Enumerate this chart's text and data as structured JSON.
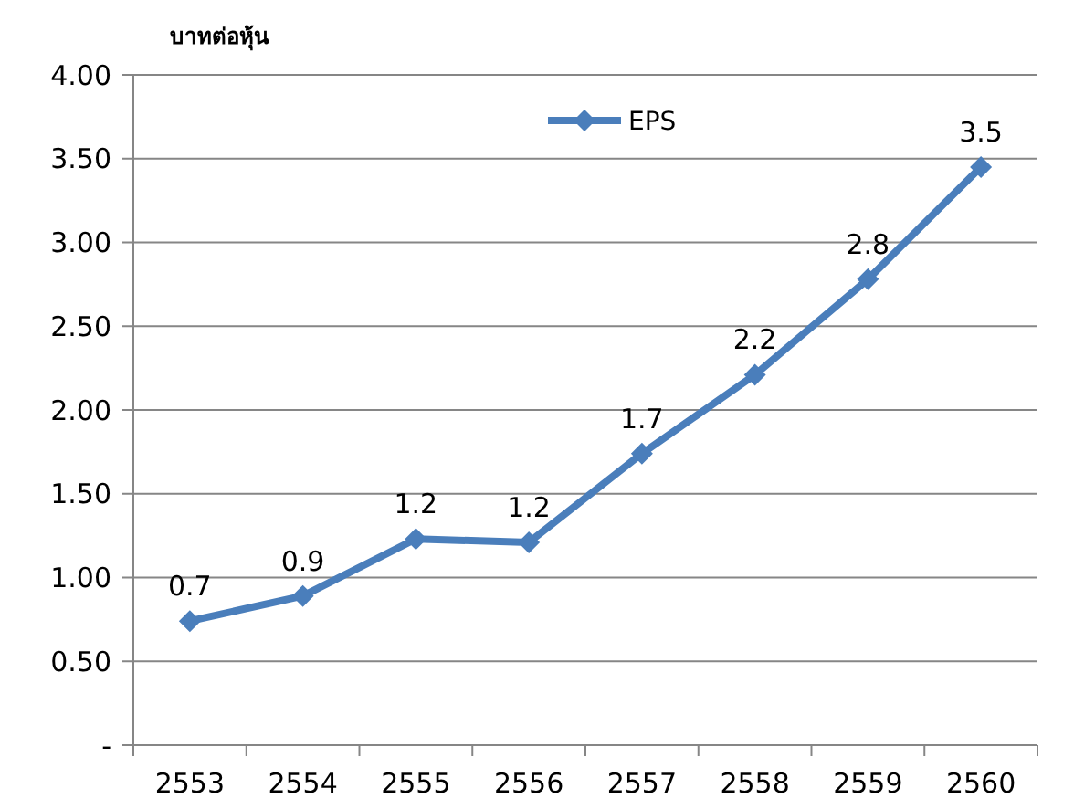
{
  "chart_data": {
    "type": "line",
    "ylabel": "บาทต่อหุ้น",
    "categories": [
      "2553",
      "2554",
      "2555",
      "2556",
      "2557",
      "2558",
      "2559",
      "2560"
    ],
    "series": [
      {
        "name": "EPS",
        "color": "#4a7ebb",
        "values": [
          0.74,
          0.89,
          1.23,
          1.21,
          1.74,
          2.21,
          2.78,
          3.45
        ],
        "value_labels": [
          "0.7",
          "0.9",
          "1.2",
          "1.2",
          "1.7",
          "2.2",
          "2.8",
          "3.5"
        ]
      }
    ],
    "ylim": [
      0,
      4
    ],
    "yticks": [
      {
        "value": 0,
        "label": "-"
      },
      {
        "value": 0.5,
        "label": "0.50"
      },
      {
        "value": 1,
        "label": "1.00"
      },
      {
        "value": 1.5,
        "label": "1.50"
      },
      {
        "value": 2,
        "label": "2.00"
      },
      {
        "value": 2.5,
        "label": "2.50"
      },
      {
        "value": 3,
        "label": "3.00"
      },
      {
        "value": 3.5,
        "label": "3.50"
      },
      {
        "value": 4,
        "label": "4.00"
      }
    ],
    "grid": "y",
    "legend": "top",
    "marker": "diamond",
    "line_style": "solid"
  }
}
